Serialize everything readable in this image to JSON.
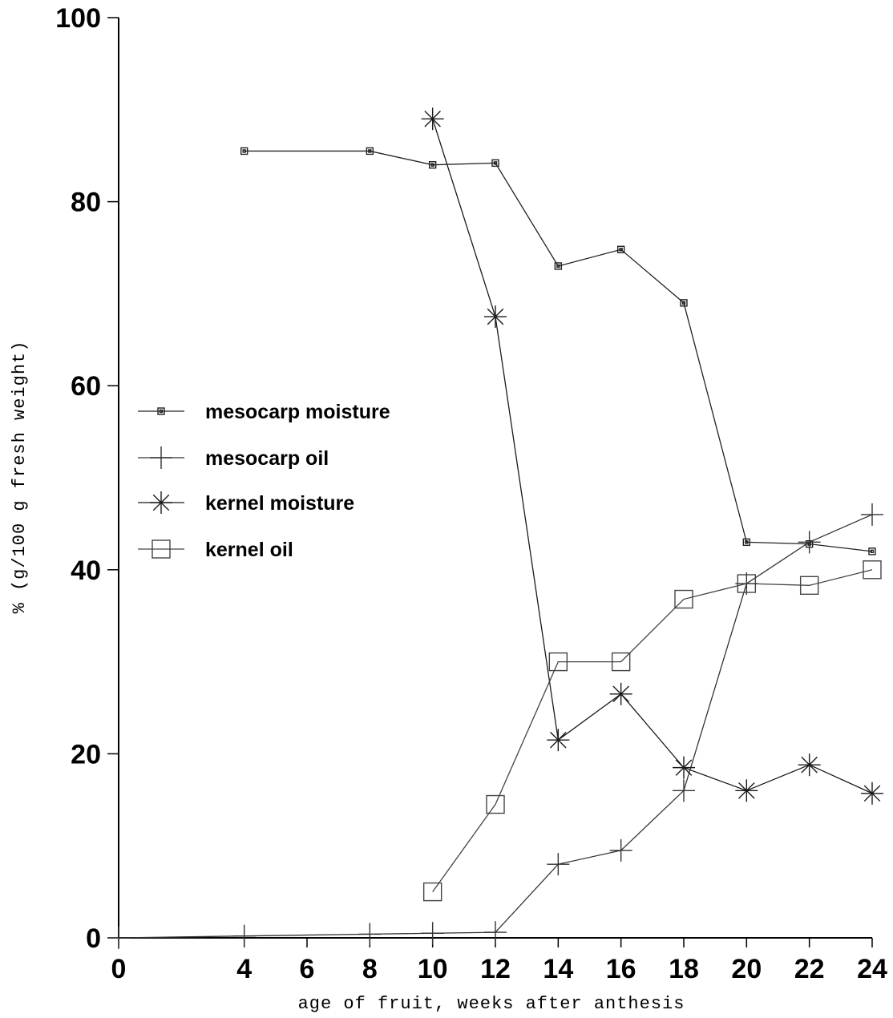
{
  "chart_data": {
    "type": "line",
    "title": "",
    "xlabel": "age of fruit, weeks after anthesis",
    "ylabel": "% (g/100 g fresh weight)",
    "xlim": [
      0,
      24
    ],
    "ylim": [
      0,
      100
    ],
    "x_ticks": [
      "0",
      "4",
      "6",
      "8",
      "10",
      "12",
      "14",
      "16",
      "18",
      "20",
      "22",
      "24"
    ],
    "y_ticks": [
      "0",
      "20",
      "40",
      "60",
      "80",
      "100"
    ],
    "grid": false,
    "legend_position": "left-middle",
    "series": [
      {
        "name": "mesocarp moisture",
        "marker": "small-square",
        "points": [
          [
            4,
            85.5
          ],
          [
            8,
            85.5
          ],
          [
            10,
            84
          ],
          [
            12,
            84.2
          ],
          [
            14,
            73
          ],
          [
            16,
            74.8
          ],
          [
            18,
            69
          ],
          [
            20,
            43
          ],
          [
            22,
            42.8
          ],
          [
            24,
            42
          ]
        ]
      },
      {
        "name": "mesocarp oil",
        "marker": "plus",
        "points": [
          [
            0,
            0
          ],
          [
            4,
            0.2
          ],
          [
            8,
            0.4
          ],
          [
            10,
            0.5
          ],
          [
            12,
            0.6
          ],
          [
            14,
            8
          ],
          [
            16,
            9.5
          ],
          [
            18,
            16
          ],
          [
            20,
            38.5
          ],
          [
            22,
            43
          ],
          [
            24,
            46
          ]
        ]
      },
      {
        "name": "kernel moisture",
        "marker": "asterisk",
        "points": [
          [
            10,
            89
          ],
          [
            12,
            67.5
          ],
          [
            14,
            21.5
          ],
          [
            16,
            26.5
          ],
          [
            18,
            18.5
          ],
          [
            20,
            16
          ],
          [
            22,
            18.8
          ],
          [
            24,
            15.7
          ]
        ]
      },
      {
        "name": "kernel oil",
        "marker": "open-square",
        "points": [
          [
            10,
            5
          ],
          [
            12,
            14.5
          ],
          [
            14,
            30
          ],
          [
            16,
            30
          ],
          [
            18,
            36.8
          ],
          [
            20,
            38.5
          ],
          [
            22,
            38.3
          ],
          [
            24,
            40
          ]
        ]
      }
    ]
  }
}
